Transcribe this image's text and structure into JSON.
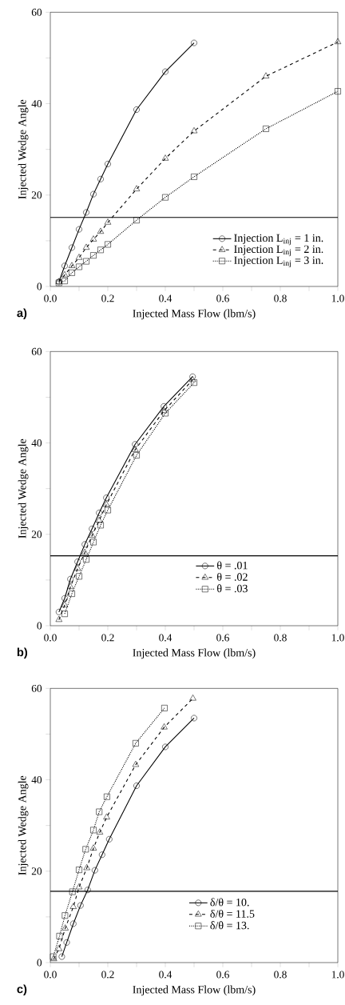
{
  "chart_data": [
    {
      "type": "line",
      "xlabel": "Injected Mass Flow (lbm/s)",
      "ylabel": "Injected Wedge Angle",
      "xlim": [
        0,
        1
      ],
      "ylim": [
        0,
        60
      ],
      "xticks": [
        {
          "value": 0,
          "label": "0.0"
        },
        {
          "value": 0.1,
          "label": null
        },
        {
          "value": 0.2,
          "label": "0.2"
        },
        {
          "value": 0.3,
          "label": null
        },
        {
          "value": 0.4,
          "label": "0.4"
        },
        {
          "value": 0.5,
          "label": null
        },
        {
          "value": 0.6,
          "label": "0.6"
        },
        {
          "value": 0.7,
          "label": null
        },
        {
          "value": 0.8,
          "label": "0.8"
        },
        {
          "value": 0.9,
          "label": null
        },
        {
          "value": 1,
          "label": "1.0"
        }
      ],
      "yticks": [
        0,
        {
          "value": 10,
          "label": null
        },
        20,
        {
          "value": 30,
          "label": null
        },
        40,
        {
          "value": 50,
          "label": null
        },
        60
      ],
      "legend": "bottom right",
      "annotations": [
        "a)"
      ],
      "ref_lines": [
        {
          "axis": "y",
          "value": 15.1,
          "label": null
        }
      ],
      "series": [
        {
          "name": "Injection L$_{inj}$ = 1 in.",
          "color": "#000000",
          "marker": "circle",
          "line_style": "solid",
          "x": [
            0.03,
            0.05,
            0.075,
            0.1,
            0.125,
            0.15,
            0.175,
            0.2,
            0.3,
            0.4,
            0.5
          ],
          "values": [
            1,
            4.5,
            8.5,
            12.5,
            16.2,
            20.2,
            23.5,
            26.8,
            38.7,
            47,
            53.3
          ]
        },
        {
          "name": "Injection L$_{inj}$  = 2 in.",
          "color": "#000000",
          "marker": "triangle",
          "line_style": "dashed",
          "x": [
            0.03,
            0.05,
            0.075,
            0.1,
            0.125,
            0.15,
            0.175,
            0.2,
            0.3,
            0.4,
            0.5,
            0.75,
            1.0
          ],
          "values": [
            1,
            2.5,
            4.5,
            6.3,
            8.5,
            10.3,
            12,
            14,
            21.3,
            28,
            34,
            46,
            53.5
          ]
        },
        {
          "name": "Injection L$_{inj}$  = 3 in.",
          "color": "#000000",
          "marker": "square",
          "line_style": "dotted",
          "x": [
            0.03,
            0.05,
            0.075,
            0.1,
            0.125,
            0.15,
            0.175,
            0.2,
            0.3,
            0.4,
            0.5,
            0.75,
            1.0
          ],
          "values": [
            0.8,
            1.2,
            3,
            4.3,
            5.5,
            6.8,
            8,
            9.2,
            14.5,
            19.5,
            24,
            34.5,
            42.7
          ]
        }
      ]
    },
    {
      "type": "line",
      "xlabel": "Injected Mass Flow (lbm/s)",
      "ylabel": "Injected Wedge Angle",
      "xlim": [
        0,
        1
      ],
      "ylim": [
        0,
        60
      ],
      "xticks": [
        {
          "value": 0,
          "label": "0.0"
        },
        {
          "value": 0.1,
          "label": null
        },
        {
          "value": 0.2,
          "label": "0.2"
        },
        {
          "value": 0.3,
          "label": null
        },
        {
          "value": 0.4,
          "label": "0.4"
        },
        {
          "value": 0.5,
          "label": null
        },
        {
          "value": 0.6,
          "label": "0.6"
        },
        {
          "value": 0.7,
          "label": null
        },
        {
          "value": 0.8,
          "label": "0.8"
        },
        {
          "value": 0.9,
          "label": null
        },
        {
          "value": 1,
          "label": "1.0"
        }
      ],
      "yticks": [
        0,
        {
          "value": 10,
          "label": null
        },
        20,
        {
          "value": 30,
          "label": null
        },
        40,
        {
          "value": 50,
          "label": null
        },
        60
      ],
      "legend": "bottom",
      "annotations": [
        "b)"
      ],
      "ref_lines": [
        {
          "axis": "y",
          "value": 15.3,
          "label": null
        }
      ],
      "series": [
        {
          "name": "θ = .01",
          "color": "#000000",
          "marker": "circle",
          "line_style": "solid",
          "x": [
            0.03,
            0.05,
            0.07,
            0.095,
            0.12,
            0.145,
            0.17,
            0.195,
            0.295,
            0.395,
            0.495
          ],
          "values": [
            3,
            6,
            10.2,
            14,
            17.8,
            21.2,
            24.7,
            28,
            39.7,
            48,
            54.5
          ]
        },
        {
          "name": "θ = .02",
          "color": "#000000",
          "marker": "triangle",
          "line_style": "dashed",
          "x": [
            0.03,
            0.05,
            0.07,
            0.095,
            0.12,
            0.145,
            0.17,
            0.195,
            0.295,
            0.395,
            0.495
          ],
          "values": [
            1.3,
            4.5,
            8.5,
            12.5,
            16,
            19.7,
            23,
            26.5,
            38.5,
            47,
            53.8
          ]
        },
        {
          "name": "θ = .03",
          "color": "#000000",
          "marker": "square",
          "line_style": "dotted",
          "x": [
            0.05,
            0.075,
            0.1,
            0.125,
            0.15,
            0.175,
            0.2,
            0.3,
            0.4,
            0.5
          ],
          "values": [
            2.6,
            7,
            10.8,
            14.5,
            18.3,
            22,
            25.3,
            37.3,
            46.5,
            53.2
          ]
        }
      ]
    },
    {
      "type": "line",
      "xlabel": "Injected Mass Flow (lbm/s)",
      "ylabel": "Injected Wedge Angle",
      "xlim": [
        0,
        1
      ],
      "ylim": [
        0,
        60
      ],
      "xticks": [
        {
          "value": 0,
          "label": "0.0"
        },
        {
          "value": 0.1,
          "label": null
        },
        {
          "value": 0.2,
          "label": "0.2"
        },
        {
          "value": 0.3,
          "label": null
        },
        {
          "value": 0.4,
          "label": "0.4"
        },
        {
          "value": 0.5,
          "label": null
        },
        {
          "value": 0.6,
          "label": "0.6"
        },
        {
          "value": 0.7,
          "label": null
        },
        {
          "value": 0.8,
          "label": "0.8"
        },
        {
          "value": 0.9,
          "label": null
        },
        {
          "value": 1,
          "label": "1.0"
        }
      ],
      "yticks": [
        0,
        {
          "value": 10,
          "label": null
        },
        20,
        {
          "value": 30,
          "label": null
        },
        40,
        {
          "value": 50,
          "label": null
        },
        60
      ],
      "legend": "bottom",
      "annotations": [
        "c)"
      ],
      "ref_lines": [
        {
          "axis": "y",
          "value": 15.6,
          "label": null
        }
      ],
      "series": [
        {
          "name": "δ/θ = 10.",
          "color": "#000000",
          "marker": "circle",
          "line_style": "solid",
          "x": [
            0.04,
            0.057,
            0.08,
            0.105,
            0.13,
            0.155,
            0.18,
            0.205,
            0.3,
            0.4,
            0.5
          ],
          "values": [
            1.3,
            4.4,
            8.5,
            12.5,
            15.9,
            20.2,
            23.6,
            27,
            38.7,
            47.2,
            53.5
          ]
        },
        {
          "name": "δ/θ = 11.5",
          "color": "#000000",
          "marker": "triangle",
          "line_style": "dashed",
          "x": [
            0.012,
            0.03,
            0.052,
            0.08,
            0.1,
            0.127,
            0.15,
            0.172,
            0.196,
            0.297,
            0.396,
            0.496
          ],
          "values": [
            0.8,
            3,
            7.5,
            12.2,
            16.5,
            20.7,
            25,
            28.5,
            31.8,
            43.3,
            51.5,
            57.8
          ]
        },
        {
          "name": "δ/θ = 13.",
          "color": "#000000",
          "marker": "square",
          "line_style": "dotted",
          "x": [
            0.01,
            0.032,
            0.051,
            0.077,
            0.1,
            0.123,
            0.15,
            0.17,
            0.197,
            0.297,
            0.397
          ],
          "values": [
            1.3,
            5.8,
            10.3,
            15.5,
            20.3,
            24.8,
            29,
            33,
            36.3,
            48,
            55.7
          ]
        }
      ]
    }
  ]
}
